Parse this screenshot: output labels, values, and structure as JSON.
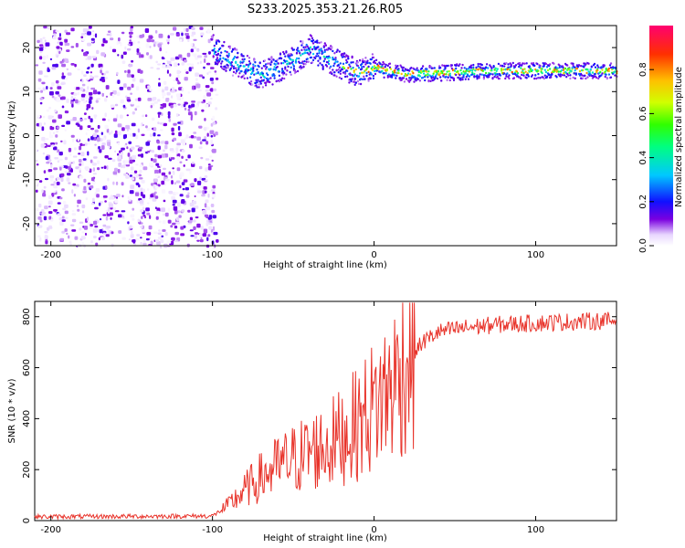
{
  "title": "S233.2025.353.21.26.R05",
  "chart_data": [
    {
      "type": "heatmap",
      "name": "spectrogram",
      "xlabel": "Height of straight line (km)",
      "ylabel": "Frequency (Hz)",
      "xlim": [
        -210,
        150
      ],
      "ylim": [
        -25,
        25
      ],
      "xticks": [
        -200,
        -100,
        0,
        100
      ],
      "yticks": [
        -20,
        -10,
        0,
        10,
        20
      ],
      "colorbar": {
        "label": "Normalized spectral amplitude",
        "range": [
          0.0,
          1.0
        ],
        "ticks": [
          "0.0",
          "0.2",
          "0.4",
          "0.6",
          "0.8"
        ],
        "tick_values": [
          0.0,
          0.2,
          0.4,
          0.6,
          0.8
        ]
      },
      "noise_region_x": [
        -210,
        -98
      ],
      "signal_track": {
        "x": [
          -100,
          -90,
          -80,
          -70,
          -60,
          -50,
          -40,
          -30,
          -20,
          -10,
          0,
          10,
          20,
          40,
          60,
          80,
          100,
          120,
          150
        ],
        "freq": [
          20,
          17.5,
          15.5,
          14,
          15.5,
          17.5,
          20,
          18,
          16,
          14.5,
          15.8,
          14.8,
          14.2,
          14.5,
          14.8,
          15,
          15,
          15,
          15
        ]
      }
    },
    {
      "type": "line",
      "name": "snr",
      "xlabel": "Height of straight line (km)",
      "ylabel": "SNR (10 * v/v)",
      "xlim": [
        -210,
        150
      ],
      "ylim": [
        0,
        860
      ],
      "xticks": [
        -200,
        -100,
        0,
        100
      ],
      "yticks": [
        0,
        200,
        400,
        600,
        800
      ],
      "color": "#e8332a",
      "envelope": {
        "x": [
          -210,
          -100,
          -90,
          -80,
          -70,
          -60,
          -50,
          -40,
          -30,
          -20,
          -10,
          0,
          10,
          20,
          30,
          40,
          60,
          80,
          100,
          120,
          150
        ],
        "mean": [
          15,
          18,
          60,
          120,
          170,
          210,
          240,
          270,
          290,
          330,
          380,
          450,
          520,
          620,
          700,
          740,
          760,
          770,
          775,
          780,
          785
        ]
      }
    }
  ]
}
